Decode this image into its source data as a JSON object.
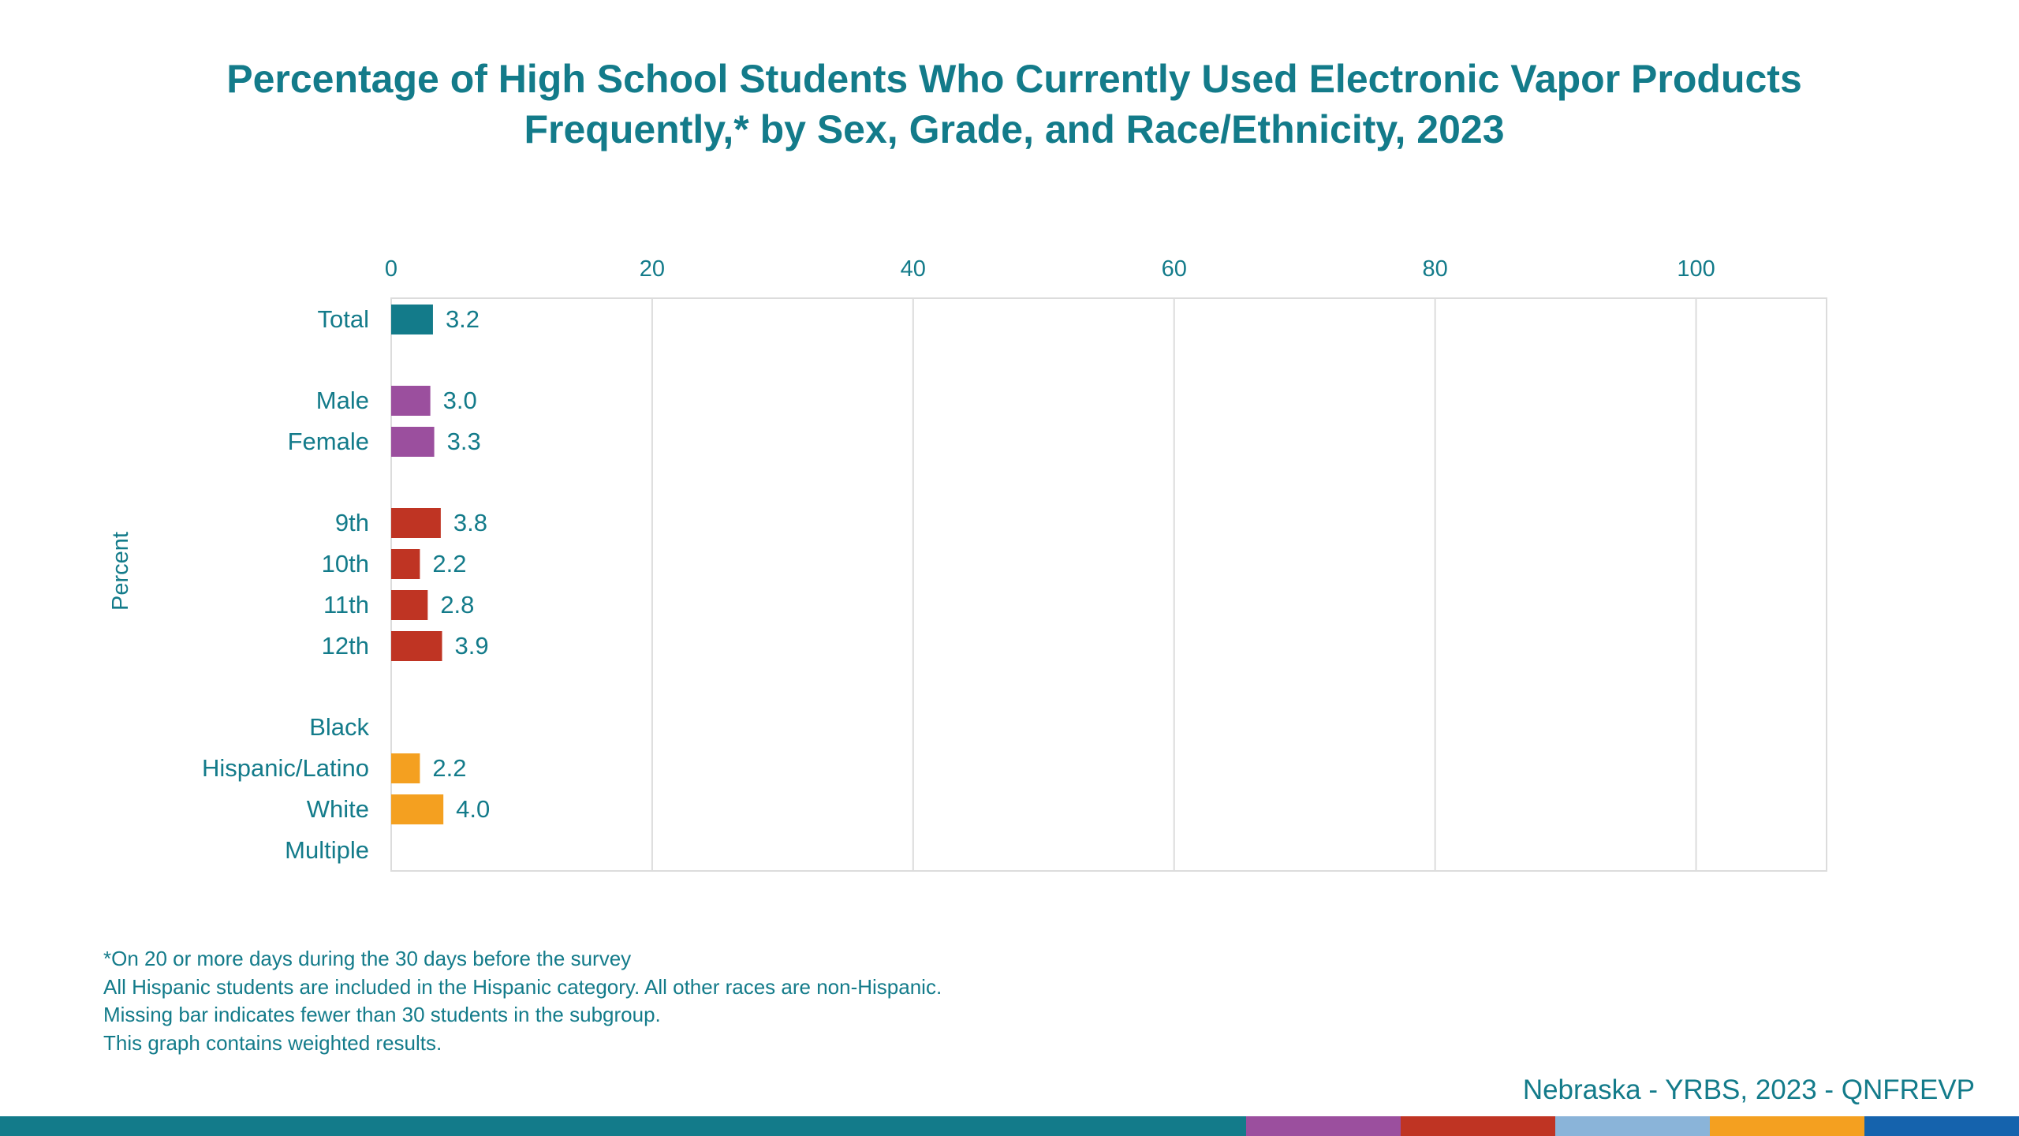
{
  "chart_data": {
    "type": "bar",
    "orientation": "horizontal",
    "title": "Percentage of High School Students Who Currently Used Electronic Vapor Products Frequently,* by Sex, Grade, and Race/Ethnicity, 2023",
    "title_lines": [
      "Percentage of High School Students Who Currently Used Electronic Vapor Products",
      "Frequently,* by Sex, Grade, and Race/Ethnicity, 2023"
    ],
    "ylabel": "Percent",
    "xlim": [
      0,
      110
    ],
    "xticks": [
      0,
      20,
      40,
      60,
      80,
      100
    ],
    "grid": true,
    "categories": [
      "Total",
      "Male",
      "Female",
      "9th",
      "10th",
      "11th",
      "12th",
      "Black",
      "Hispanic/Latino",
      "White",
      "Multiple"
    ],
    "groups": [
      "Total",
      "Sex",
      "Sex",
      "Grade",
      "Grade",
      "Grade",
      "Grade",
      "Race/Ethnicity",
      "Race/Ethnicity",
      "Race/Ethnicity",
      "Race/Ethnicity"
    ],
    "values": [
      3.2,
      3.0,
      3.3,
      3.8,
      2.2,
      2.8,
      3.9,
      null,
      2.2,
      4.0,
      null
    ],
    "value_labels": [
      "3.2",
      "3.0",
      "3.3",
      "3.8",
      "2.2",
      "2.8",
      "3.9",
      "",
      "2.2",
      "4.0",
      ""
    ]
  },
  "colors": {
    "text": "#137b8a",
    "total": "#137b8a",
    "sex": "#9b4f9e",
    "grade": "#bf3423",
    "race": "#f4a020",
    "grid": "#dcdcdc"
  },
  "footnotes": [
    "*On 20 or more days during the 30 days before the survey",
    "All Hispanic students are included in the Hispanic category.  All other races are non-Hispanic.",
    "Missing bar indicates fewer than 30 students in the subgroup.",
    "This graph contains weighted results."
  ],
  "source": "Nebraska - YRBS, 2023 - QNFREVP",
  "bottom_bar_colors": [
    "#137b8a",
    "#9b4f9e",
    "#bf3423",
    "#8ab4d9",
    "#f4a020",
    "#1563ad"
  ]
}
